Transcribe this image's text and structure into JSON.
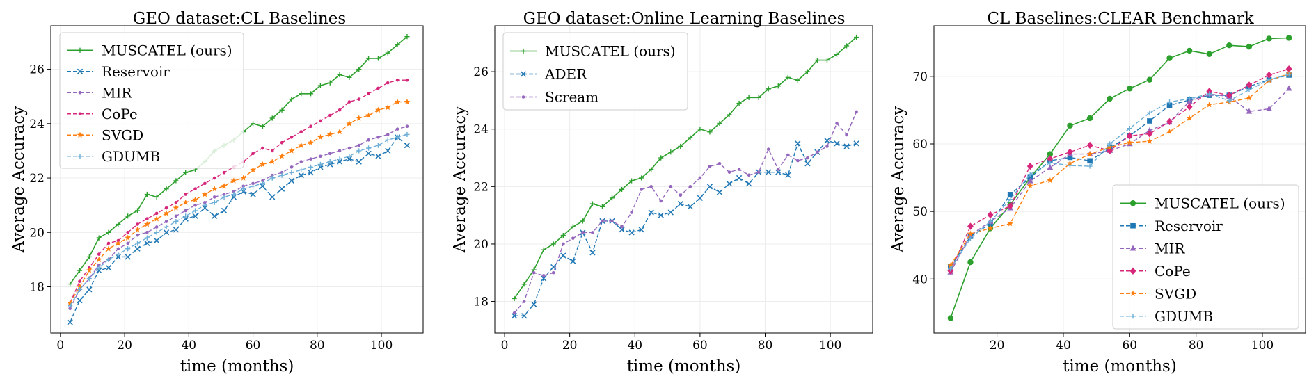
{
  "chart_data": [
    {
      "type": "line",
      "title": "GEO dataset:CL Baselines",
      "xlabel": "time (months)",
      "ylabel": "Average Accuracy",
      "xlim": [
        -3,
        113
      ],
      "ylim": [
        16.3,
        27.6
      ],
      "xticks": [
        0,
        20,
        40,
        60,
        80,
        100
      ],
      "yticks": [
        18,
        20,
        22,
        24,
        26
      ],
      "legend_position": "upper-left",
      "grid": true,
      "series": [
        {
          "name": "MUSCATEL (ours)",
          "color": "#2ca02c",
          "dash": "solid",
          "marker": "plus",
          "x": [
            3,
            6,
            9,
            12,
            15,
            18,
            21,
            24,
            27,
            30,
            33,
            36,
            39,
            42,
            45,
            48,
            51,
            54,
            57,
            60,
            63,
            66,
            69,
            72,
            75,
            78,
            81,
            84,
            87,
            90,
            93,
            96,
            99,
            102,
            105,
            108
          ],
          "y": [
            18.1,
            18.6,
            19.1,
            19.8,
            20.0,
            20.3,
            20.6,
            20.8,
            21.4,
            21.3,
            21.6,
            21.9,
            22.2,
            22.3,
            22.6,
            23.0,
            23.2,
            23.4,
            23.7,
            24.0,
            23.9,
            24.2,
            24.5,
            24.9,
            25.1,
            25.1,
            25.4,
            25.5,
            25.8,
            25.7,
            26.0,
            26.4,
            26.4,
            26.6,
            26.9,
            27.2
          ]
        },
        {
          "name": "Reservoir",
          "color": "#1f77b4",
          "dash": "dashed",
          "marker": "x",
          "x": [
            3,
            6,
            9,
            12,
            15,
            18,
            21,
            24,
            27,
            30,
            33,
            36,
            39,
            42,
            45,
            48,
            51,
            54,
            57,
            60,
            63,
            66,
            69,
            72,
            75,
            78,
            81,
            84,
            87,
            90,
            93,
            96,
            99,
            102,
            105,
            108
          ],
          "y": [
            16.7,
            17.5,
            17.9,
            18.6,
            18.7,
            19.1,
            19.1,
            19.4,
            19.6,
            19.7,
            20.0,
            20.1,
            20.5,
            20.6,
            20.9,
            20.6,
            20.8,
            21.3,
            21.5,
            21.4,
            21.7,
            21.3,
            21.6,
            21.9,
            22.1,
            22.2,
            22.4,
            22.5,
            22.6,
            22.7,
            22.6,
            22.9,
            22.8,
            23.0,
            23.5,
            23.2
          ]
        },
        {
          "name": "MIR",
          "color": "#9467bd",
          "dash": "dashed",
          "marker": "dot",
          "x": [
            3,
            6,
            9,
            12,
            15,
            18,
            21,
            24,
            27,
            30,
            33,
            36,
            39,
            42,
            45,
            48,
            51,
            54,
            57,
            60,
            63,
            66,
            69,
            72,
            75,
            78,
            81,
            84,
            87,
            90,
            93,
            96,
            99,
            102,
            105,
            108
          ],
          "y": [
            17.2,
            17.9,
            18.3,
            18.8,
            19.0,
            19.4,
            19.6,
            19.9,
            20.0,
            20.2,
            20.4,
            20.6,
            20.8,
            21.0,
            21.1,
            21.3,
            21.4,
            21.5,
            21.7,
            21.8,
            21.9,
            22.1,
            22.2,
            22.4,
            22.6,
            22.7,
            22.8,
            22.9,
            23.0,
            23.1,
            23.2,
            23.4,
            23.5,
            23.6,
            23.8,
            23.9
          ]
        },
        {
          "name": "CoPe",
          "color": "#d6277b",
          "dash": "dashed",
          "marker": "dot",
          "x": [
            3,
            6,
            9,
            12,
            15,
            18,
            21,
            24,
            27,
            30,
            33,
            36,
            39,
            42,
            45,
            48,
            51,
            54,
            57,
            60,
            63,
            66,
            69,
            72,
            75,
            78,
            81,
            84,
            87,
            90,
            93,
            96,
            99,
            102,
            105,
            108
          ],
          "y": [
            17.4,
            18.2,
            18.7,
            19.2,
            19.6,
            19.7,
            20.0,
            20.3,
            20.5,
            20.7,
            20.9,
            21.1,
            21.4,
            21.6,
            21.8,
            22.0,
            22.2,
            22.4,
            22.6,
            22.9,
            23.1,
            23.0,
            23.3,
            23.5,
            23.7,
            23.9,
            24.1,
            24.3,
            24.5,
            24.8,
            24.9,
            25.1,
            25.3,
            25.5,
            25.6,
            25.6
          ]
        },
        {
          "name": "SVGD",
          "color": "#ff7f0e",
          "dash": "dashed",
          "marker": "star",
          "x": [
            3,
            6,
            9,
            12,
            15,
            18,
            21,
            24,
            27,
            30,
            33,
            36,
            39,
            42,
            45,
            48,
            51,
            54,
            57,
            60,
            63,
            66,
            69,
            72,
            75,
            78,
            81,
            84,
            87,
            90,
            93,
            96,
            99,
            102,
            105,
            108
          ],
          "y": [
            17.4,
            18.0,
            18.6,
            19.0,
            19.4,
            19.6,
            19.8,
            20.1,
            20.3,
            20.5,
            20.7,
            20.9,
            21.1,
            21.2,
            21.4,
            21.6,
            21.7,
            21.9,
            22.0,
            22.3,
            22.5,
            22.6,
            22.8,
            23.0,
            23.2,
            23.3,
            23.5,
            23.6,
            23.7,
            24.0,
            24.2,
            24.3,
            24.5,
            24.6,
            24.8,
            24.8
          ]
        },
        {
          "name": "GDUMB",
          "color": "#6baed6",
          "dash": "dashed",
          "marker": "plus",
          "x": [
            3,
            6,
            9,
            12,
            15,
            18,
            21,
            24,
            27,
            30,
            33,
            36,
            39,
            42,
            45,
            48,
            51,
            54,
            57,
            60,
            63,
            66,
            69,
            72,
            75,
            78,
            81,
            84,
            87,
            90,
            93,
            96,
            99,
            102,
            105,
            108
          ],
          "y": [
            17.3,
            17.9,
            18.3,
            18.7,
            19.0,
            19.2,
            19.4,
            19.6,
            19.8,
            20.0,
            20.2,
            20.4,
            20.6,
            20.8,
            21.0,
            21.1,
            21.3,
            21.4,
            21.6,
            21.7,
            21.8,
            22.0,
            22.1,
            22.2,
            22.3,
            22.4,
            22.5,
            22.6,
            22.7,
            22.8,
            23.0,
            23.1,
            23.2,
            23.4,
            23.5,
            23.6
          ]
        }
      ]
    },
    {
      "type": "line",
      "title": "GEO dataset:Online Learning Baselines",
      "xlabel": "time (months)",
      "ylabel": "Average Accuracy",
      "xlim": [
        -3,
        113
      ],
      "ylim": [
        16.9,
        27.6
      ],
      "xticks": [
        0,
        20,
        40,
        60,
        80,
        100
      ],
      "yticks": [
        18,
        20,
        22,
        24,
        26
      ],
      "legend_position": "upper-left",
      "grid": true,
      "series": [
        {
          "name": "MUSCATEL (ours)",
          "color": "#2ca02c",
          "dash": "solid",
          "marker": "plus",
          "x": [
            3,
            6,
            9,
            12,
            15,
            18,
            21,
            24,
            27,
            30,
            33,
            36,
            39,
            42,
            45,
            48,
            51,
            54,
            57,
            60,
            63,
            66,
            69,
            72,
            75,
            78,
            81,
            84,
            87,
            90,
            93,
            96,
            99,
            102,
            105,
            108
          ],
          "y": [
            18.1,
            18.6,
            19.1,
            19.8,
            20.0,
            20.3,
            20.6,
            20.8,
            21.4,
            21.3,
            21.6,
            21.9,
            22.2,
            22.3,
            22.6,
            23.0,
            23.2,
            23.4,
            23.7,
            24.0,
            23.9,
            24.2,
            24.5,
            24.9,
            25.1,
            25.1,
            25.4,
            25.5,
            25.8,
            25.7,
            26.0,
            26.4,
            26.4,
            26.6,
            26.9,
            27.2
          ]
        },
        {
          "name": "ADER",
          "color": "#1f77b4",
          "dash": "dashed",
          "marker": "x",
          "x": [
            3,
            6,
            9,
            12,
            15,
            18,
            21,
            24,
            27,
            30,
            33,
            36,
            39,
            42,
            45,
            48,
            51,
            54,
            57,
            60,
            63,
            66,
            69,
            72,
            75,
            78,
            81,
            84,
            87,
            90,
            93,
            96,
            99,
            102,
            105,
            108
          ],
          "y": [
            17.5,
            17.5,
            17.9,
            18.8,
            19.2,
            19.6,
            19.4,
            20.4,
            19.7,
            20.8,
            20.8,
            20.5,
            20.4,
            20.5,
            21.1,
            21.0,
            21.1,
            21.4,
            21.3,
            21.6,
            22.0,
            21.8,
            22.1,
            22.3,
            22.1,
            22.5,
            22.5,
            22.5,
            22.4,
            23.5,
            22.8,
            23.2,
            23.6,
            23.5,
            23.4,
            23.5
          ]
        },
        {
          "name": "Scream",
          "color": "#9467bd",
          "dash": "dashed",
          "marker": "dot",
          "x": [
            3,
            6,
            9,
            12,
            15,
            18,
            21,
            24,
            27,
            30,
            33,
            36,
            39,
            42,
            45,
            48,
            51,
            54,
            57,
            60,
            63,
            66,
            69,
            72,
            75,
            78,
            81,
            84,
            87,
            90,
            93,
            96,
            99,
            102,
            105,
            108
          ],
          "y": [
            17.6,
            18.0,
            19.0,
            18.9,
            19.0,
            20.0,
            20.2,
            20.4,
            20.4,
            20.8,
            20.8,
            20.6,
            21.1,
            21.9,
            22.0,
            21.5,
            22.0,
            21.7,
            22.0,
            22.3,
            22.7,
            22.8,
            22.5,
            22.6,
            22.4,
            22.5,
            23.3,
            22.6,
            23.1,
            22.9,
            23.0,
            23.2,
            23.4,
            24.2,
            23.8,
            24.6
          ]
        }
      ]
    },
    {
      "type": "line",
      "title": "CL Baselines:CLEAR Benchmark",
      "xlabel": "time (months)",
      "ylabel": "Average Accuracy",
      "xlim": [
        1,
        113
      ],
      "ylim": [
        32,
        77.5
      ],
      "xticks": [
        20,
        40,
        60,
        80,
        100
      ],
      "yticks": [
        40,
        50,
        60,
        70
      ],
      "legend_position": "lower-right",
      "grid": true,
      "series": [
        {
          "name": "MUSCATEL (ours)",
          "color": "#2ca02c",
          "dash": "solid",
          "marker": "circle",
          "x": [
            6,
            12,
            18,
            24,
            30,
            36,
            42,
            48,
            54,
            60,
            66,
            72,
            78,
            84,
            90,
            96,
            102,
            108
          ],
          "y": [
            34.2,
            42.5,
            47.5,
            51.0,
            55.0,
            58.5,
            62.7,
            63.8,
            66.7,
            68.2,
            69.5,
            72.7,
            73.8,
            73.3,
            74.6,
            74.4,
            75.6,
            75.7
          ]
        },
        {
          "name": "Reservoir",
          "color": "#1f77b4",
          "dash": "dashed",
          "marker": "square",
          "x": [
            6,
            12,
            18,
            24,
            30,
            36,
            42,
            48,
            54,
            60,
            66,
            72,
            78,
            84,
            90,
            96,
            102,
            108
          ],
          "y": [
            41.8,
            46.3,
            48.2,
            52.5,
            55.0,
            57.5,
            58.0,
            57.5,
            59.4,
            61.2,
            63.4,
            65.7,
            66.5,
            67.2,
            67.2,
            68.5,
            69.5,
            70.2
          ]
        },
        {
          "name": "MIR",
          "color": "#9467bd",
          "dash": "dashed",
          "marker": "triangle",
          "x": [
            6,
            12,
            18,
            24,
            30,
            36,
            42,
            48,
            54,
            60,
            66,
            72,
            78,
            84,
            90,
            96,
            102,
            108
          ],
          "y": [
            41.0,
            46.5,
            48.5,
            50.5,
            54.5,
            56.5,
            58.5,
            58.5,
            59.0,
            60.0,
            62.0,
            63.2,
            66.3,
            67.4,
            67.0,
            64.8,
            65.2,
            68.2
          ]
        },
        {
          "name": "CoPe",
          "color": "#d6277b",
          "dash": "dashed",
          "marker": "diamond",
          "x": [
            6,
            12,
            18,
            24,
            30,
            36,
            42,
            48,
            54,
            60,
            66,
            72,
            78,
            84,
            90,
            96,
            102,
            108
          ],
          "y": [
            41.2,
            47.8,
            49.5,
            50.8,
            56.7,
            57.8,
            58.8,
            59.8,
            59.0,
            61.2,
            61.5,
            63.3,
            65.5,
            67.8,
            67.2,
            68.7,
            70.2,
            71.1
          ]
        },
        {
          "name": "SVGD",
          "color": "#ff7f0e",
          "dash": "dashed",
          "marker": "star",
          "x": [
            6,
            12,
            18,
            24,
            30,
            36,
            42,
            48,
            54,
            60,
            66,
            72,
            78,
            84,
            90,
            96,
            102,
            108
          ],
          "y": [
            42.0,
            46.7,
            47.5,
            48.2,
            53.8,
            54.6,
            57.1,
            58.5,
            59.5,
            60.2,
            60.4,
            61.8,
            63.8,
            65.8,
            66.2,
            66.8,
            69.4,
            70.4
          ]
        },
        {
          "name": "GDUMB",
          "color": "#6baed6",
          "dash": "dashed",
          "marker": "plus",
          "x": [
            6,
            12,
            18,
            24,
            30,
            36,
            42,
            48,
            54,
            60,
            66,
            72,
            78,
            84,
            90,
            96,
            102,
            108
          ],
          "y": [
            41.5,
            46.0,
            48.5,
            51.8,
            55.5,
            57.2,
            56.8,
            56.7,
            60.0,
            62.3,
            64.6,
            66.2,
            66.7,
            67.4,
            66.4,
            68.0,
            69.5,
            70.3
          ]
        }
      ]
    }
  ]
}
